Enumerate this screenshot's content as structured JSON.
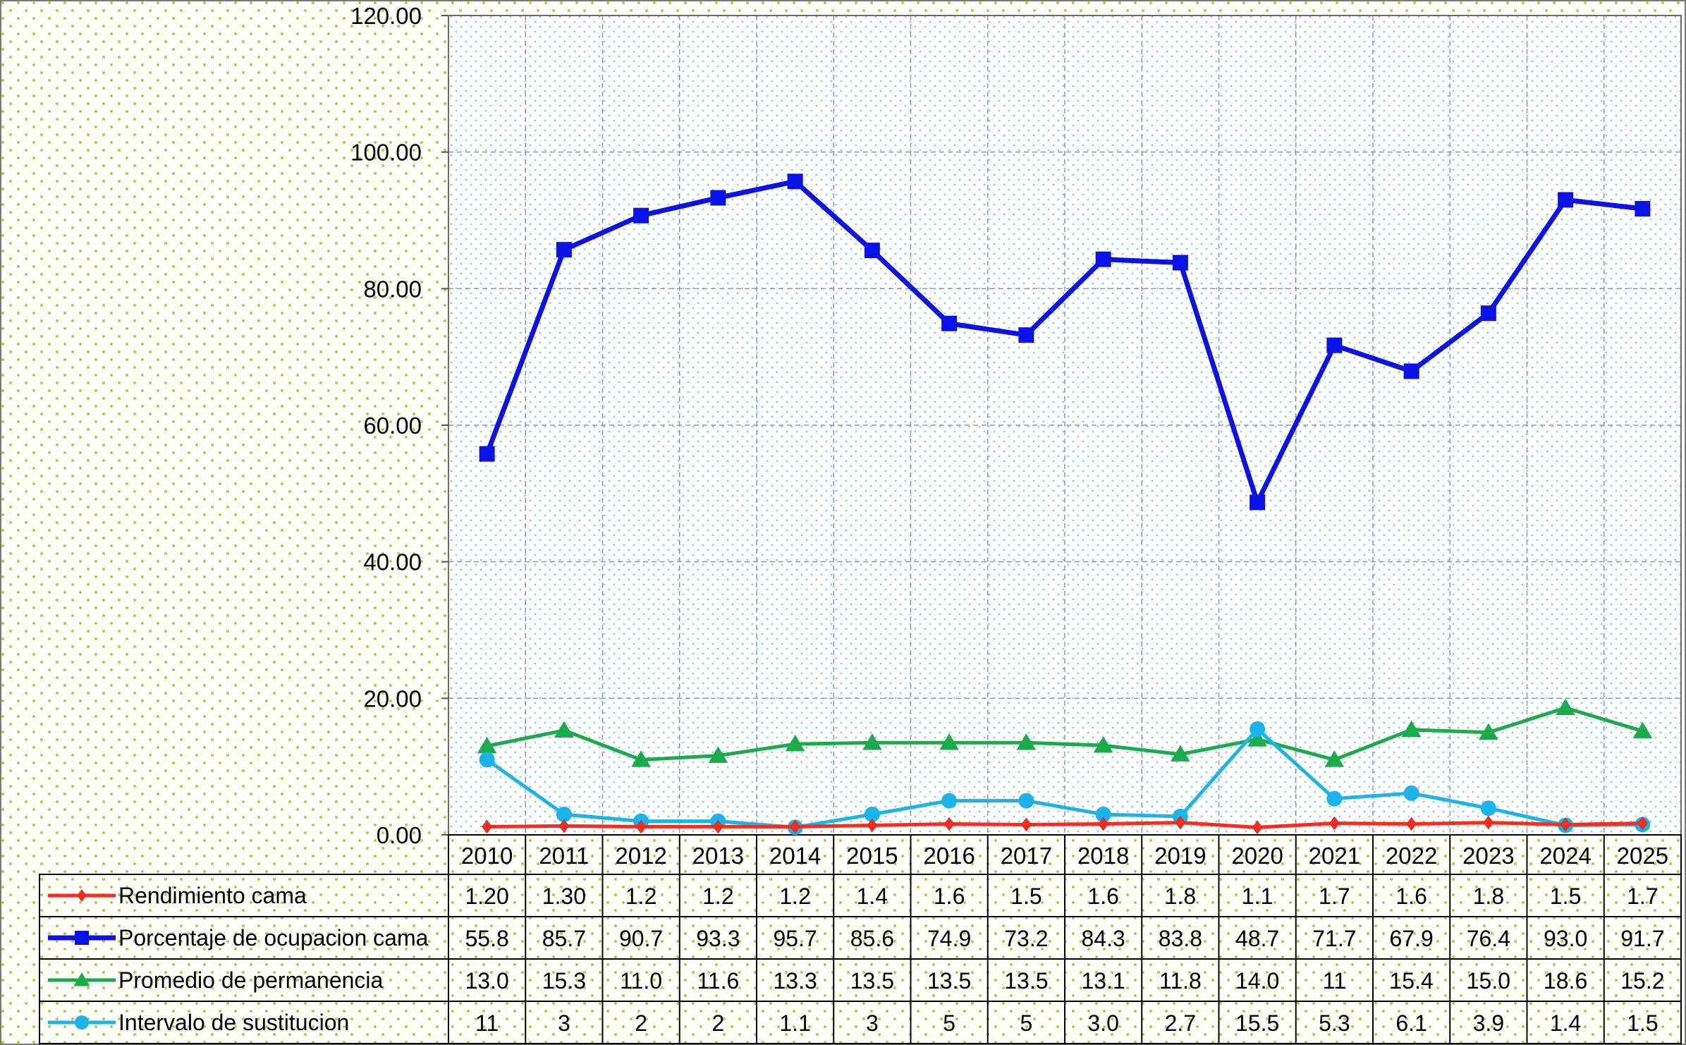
{
  "chart_data": {
    "type": "line",
    "title": "",
    "xlabel": "",
    "ylabel": "",
    "ylim": [
      0,
      120
    ],
    "y_ticks": [
      "0.00",
      "20.00",
      "40.00",
      "60.00",
      "80.00",
      "100.00",
      "120.00"
    ],
    "grid": true,
    "legend_placement": "data-table-left",
    "categories": [
      "2010",
      "2011",
      "2012",
      "2013",
      "2014",
      "2015",
      "2016",
      "2017",
      "2018",
      "2019",
      "2020",
      "2021",
      "2022",
      "2023",
      "2024",
      "2025"
    ],
    "series": [
      {
        "name": "Rendimiento cama",
        "color": "#ff2a1a",
        "marker": "diamond",
        "values": [
          1.2,
          1.3,
          1.2,
          1.2,
          1.2,
          1.4,
          1.6,
          1.5,
          1.6,
          1.8,
          1.1,
          1.7,
          1.6,
          1.8,
          1.5,
          1.7
        ],
        "labels": [
          "1.20",
          "1.30",
          "1.2",
          "1.2",
          "1.2",
          "1.4",
          "1.6",
          "1.5",
          "1.6",
          "1.8",
          "1.1",
          "1.7",
          "1.6",
          "1.8",
          "1.5",
          "1.7"
        ]
      },
      {
        "name": "Porcentaje de ocupacion cama",
        "color": "#0a12e8",
        "marker": "square",
        "values": [
          55.8,
          85.7,
          90.7,
          93.3,
          95.7,
          85.6,
          74.9,
          73.2,
          84.3,
          83.8,
          48.7,
          71.7,
          67.9,
          76.4,
          93.0,
          91.7
        ],
        "labels": [
          "55.8",
          "85.7",
          "90.7",
          "93.3",
          "95.7",
          "85.6",
          "74.9",
          "73.2",
          "84.3",
          "83.8",
          "48.7",
          "71.7",
          "67.9",
          "76.4",
          "93.0",
          "91.7"
        ]
      },
      {
        "name": "Promedio de permanencia",
        "color": "#1aab4a",
        "marker": "triangle",
        "values": [
          13.0,
          15.3,
          11.0,
          11.6,
          13.3,
          13.5,
          13.5,
          13.5,
          13.1,
          11.8,
          14.0,
          11,
          15.4,
          15.0,
          18.6,
          15.2
        ],
        "labels": [
          "13.0",
          "15.3",
          "11.0",
          "11.6",
          "13.3",
          "13.5",
          "13.5",
          "13.5",
          "13.1",
          "11.8",
          "14.0",
          "11",
          "15.4",
          "15.0",
          "18.6",
          "15.2"
        ]
      },
      {
        "name": "Intervalo de sustitucion",
        "color": "#1ab4ea",
        "marker": "circle",
        "values": [
          11,
          3,
          2,
          2,
          1.1,
          3,
          5,
          5,
          3.0,
          2.7,
          15.5,
          5.3,
          6.1,
          3.9,
          1.4,
          1.5
        ],
        "labels": [
          "11",
          "3",
          "2",
          "2",
          "1.1",
          "3",
          "5",
          "5",
          "3.0",
          "2.7",
          "15.5",
          "5.3",
          "6.1",
          "3.9",
          "1.4",
          "1.5"
        ]
      }
    ]
  }
}
